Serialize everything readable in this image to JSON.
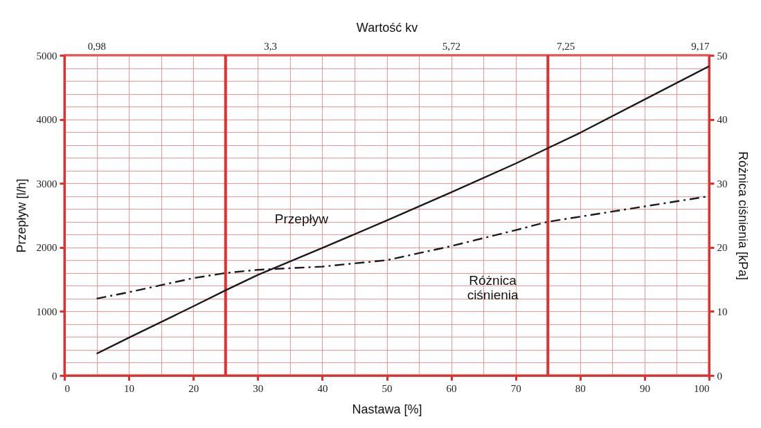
{
  "chart_data": {
    "type": "line",
    "xlabel": "Nastawa [%]",
    "ylabel": "Przepływ [l/h]",
    "y2label": "Różnica ciśnienia [kPa]",
    "x2label": "Wartość kv",
    "x": [
      5,
      10,
      20,
      25,
      30,
      40,
      50,
      60,
      70,
      75,
      80,
      90,
      100
    ],
    "series": [
      {
        "name": "Przepływ",
        "color": "#1a1a1a",
        "line_style": "solid",
        "values": [
          340,
          590,
          1080,
          1330,
          1570,
          1990,
          2420,
          2860,
          3310,
          3550,
          3790,
          4310,
          4830
        ]
      },
      {
        "name": "Różnica ciśnienia",
        "color": "#1a1a1a",
        "line_style": "dashed",
        "axis": "y2",
        "values": [
          12,
          13,
          15.2,
          16,
          16.5,
          17,
          18,
          20.2,
          22.7,
          24,
          24.8,
          26.4,
          28
        ]
      }
    ],
    "xlim": [
      0,
      100
    ],
    "ylim": [
      0,
      5000
    ],
    "y2lim": [
      0,
      50
    ],
    "x2lim": [
      0.55,
      9.17
    ],
    "xticks": [
      0,
      {
        "value": 5,
        "label": null
      },
      10,
      {
        "value": 15,
        "label": null
      },
      20,
      30,
      {
        "value": 35,
        "label": null
      },
      40,
      {
        "value": 45,
        "label": null
      },
      50,
      {
        "value": 55,
        "label": null
      },
      60,
      {
        "value": 65,
        "label": null
      },
      70,
      80,
      {
        "value": 85,
        "label": null
      },
      90,
      {
        "value": 95,
        "label": null
      },
      100
    ],
    "yticks": [
      0,
      {
        "value": 200,
        "label": null
      },
      {
        "value": 400,
        "label": null
      },
      {
        "value": 600,
        "label": null
      },
      {
        "value": 800,
        "label": null
      },
      1000,
      {
        "value": 1200,
        "label": null
      },
      {
        "value": 1400,
        "label": null
      },
      {
        "value": 1600,
        "label": null
      },
      {
        "value": 1800,
        "label": null
      },
      2000,
      {
        "value": 2200,
        "label": null
      },
      {
        "value": 2400,
        "label": null
      },
      {
        "value": 2600,
        "label": null
      },
      {
        "value": 2800,
        "label": null
      },
      3000,
      {
        "value": 3200,
        "label": null
      },
      {
        "value": 3400,
        "label": null
      },
      {
        "value": 3600,
        "label": null
      },
      {
        "value": 3800,
        "label": null
      },
      4000,
      {
        "value": 4200,
        "label": null
      },
      {
        "value": 4400,
        "label": null
      },
      {
        "value": 4600,
        "label": null
      },
      {
        "value": 4800,
        "label": null
      },
      5000
    ],
    "y2ticks": [
      0,
      10,
      20,
      30,
      40,
      50
    ],
    "x2ticks": [
      {
        "value": 0.98,
        "label": "0,98"
      },
      {
        "value": 3.3,
        "label": "3,3"
      },
      {
        "value": 5.72,
        "label": "5,72"
      },
      {
        "value": 7.25,
        "label": "7,25"
      },
      {
        "value": 9.17,
        "label": "9,17"
      }
    ],
    "ref_lines": [
      {
        "axis": "x",
        "value": 25,
        "color": "#e03030"
      },
      {
        "axis": "x",
        "value": 75,
        "color": "#e03030"
      }
    ],
    "grid": true,
    "legend": false
  }
}
